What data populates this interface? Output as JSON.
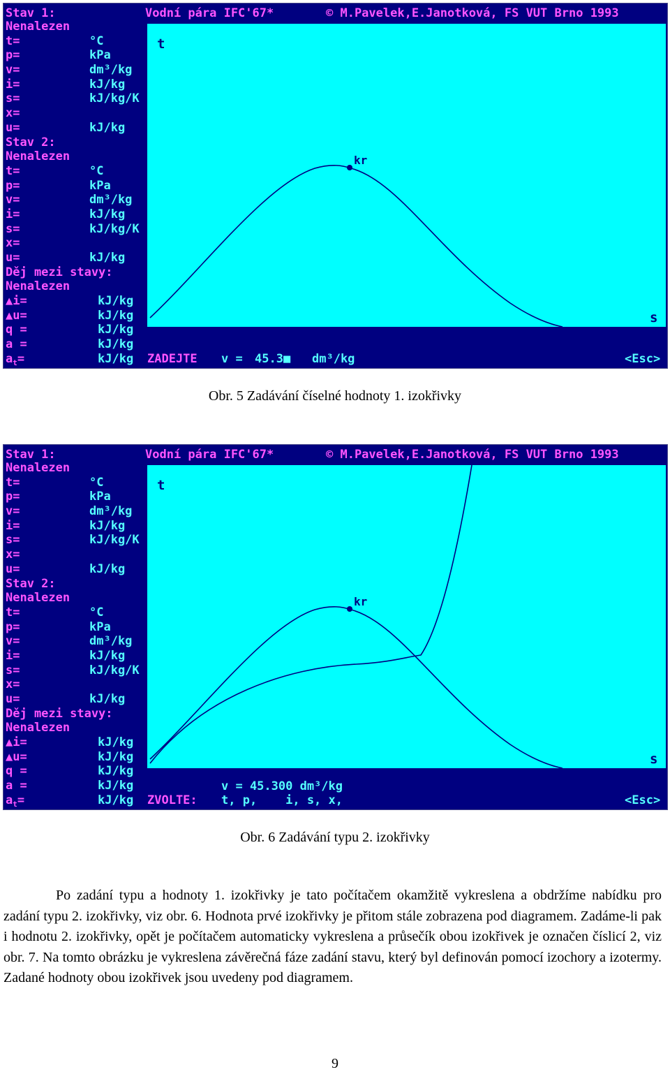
{
  "screen1": {
    "header": {
      "state": "Stav 1:",
      "title": "Vodní pára IFC'67*",
      "copyright": "© M.Pavelek,E.Janotková, FS VUT Brno 1993"
    },
    "plot": {
      "t_label": "t",
      "s_label": "s",
      "kr_label": "kr"
    },
    "bottom": {
      "prompt": "ZADEJTE",
      "v_label": "v =",
      "v_value": "45.3■",
      "v_unit": "dm³/kg",
      "esc": "<Esc>"
    }
  },
  "screen2": {
    "header": {
      "state": "Stav 1:",
      "title": "Vodní pára IFC'67*",
      "copyright": "© M.Pavelek,E.Janotková, FS VUT Brno 1993"
    },
    "plot": {
      "t_label": "t",
      "s_label": "s",
      "kr_label": "kr"
    },
    "bottom": {
      "v_line": "v = 45.300 dm³/kg",
      "prompt": "ZVOLTE:",
      "options": "t, p,    i, s, x,",
      "esc": "<Esc>"
    }
  },
  "left_panel": {
    "stav1": "Stav 1:",
    "nenalezen1": "Nenalezen",
    "stav1_rows": [
      {
        "label": "t=",
        "unit": "°C"
      },
      {
        "label": "p=",
        "unit": "kPa"
      },
      {
        "label": "v=",
        "unit": "dm³/kg"
      },
      {
        "label": "i=",
        "unit": "kJ/kg"
      },
      {
        "label": "s=",
        "unit": "kJ/kg/K"
      },
      {
        "label": "x=",
        "unit": ""
      },
      {
        "label": "u=",
        "unit": "kJ/kg"
      }
    ],
    "stav2": "Stav 2:",
    "nenalezen2": "Nenalezen",
    "stav2_rows": [
      {
        "label": "t=",
        "unit": "°C"
      },
      {
        "label": "p=",
        "unit": "kPa"
      },
      {
        "label": "v=",
        "unit": "dm³/kg"
      },
      {
        "label": "i=",
        "unit": "kJ/kg"
      },
      {
        "label": "s=",
        "unit": "kJ/kg/K"
      },
      {
        "label": "x=",
        "unit": ""
      },
      {
        "label": "u=",
        "unit": "kJ/kg"
      }
    ],
    "dej": "Děj mezi stavy:",
    "nenalezen3": "Nenalezen",
    "dej_rows": [
      {
        "label": "▲i=",
        "unit": "kJ/kg"
      },
      {
        "label": "▲u=",
        "unit": "kJ/kg"
      },
      {
        "label": "q =",
        "unit": "kJ/kg"
      },
      {
        "label": "a =",
        "unit": "kJ/kg"
      },
      {
        "label": "a",
        "sub": "t",
        "label_end": "=",
        "unit": "kJ/kg"
      }
    ]
  },
  "caption1": "Obr. 5 Zadávání číselné hodnoty 1. izokřivky",
  "caption2": "Obr. 6 Zadávání typu 2. izokřivky",
  "paragraph": "Po zadání typu a hodnoty 1. izokřivky je tato počítačem okamžitě vykreslena a obdržíme nabídku pro zadání typu 2. izokřivky, viz obr. 6. Hodnota prvé izokřivky je přitom stále zobrazena pod diagramem. Zadáme-li pak i hodnotu 2. izokřivky, opět je počítačem automaticky vykreslena a průsečík obou izokřivek je označen číslicí 2, viz obr. 7. Na tomto obrázku je vykreslena závěrečná fáze zadání stavu, který byl definován pomocí izochory a izotermy. Zadané hodnoty obou izokřivek jsou uvedeny pod diagramem.",
  "page_number": "9",
  "colors": {
    "screen_bg": "#000080",
    "plot_bg": "#00ffff",
    "magenta": "#ff55ff",
    "cyan": "#55ffff",
    "curve": "#000080"
  }
}
